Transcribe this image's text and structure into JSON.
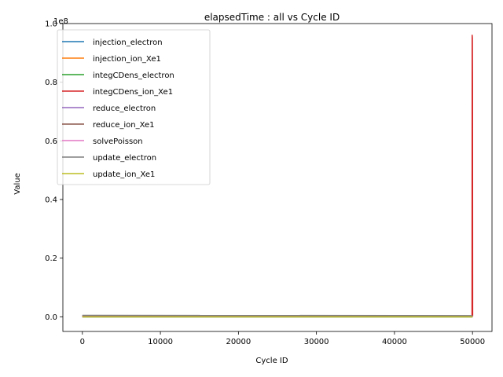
{
  "chart_data": {
    "type": "line",
    "title": "elapsedTime : all vs Cycle ID",
    "xlabel": "Cycle ID",
    "ylabel": "Value",
    "y_offset_text": "1e8",
    "xlim": [
      -2500,
      52500
    ],
    "ylim": [
      -0.05,
      1.0
    ],
    "y_scale_factor": 100000000.0,
    "xticks": [
      0,
      10000,
      20000,
      30000,
      40000,
      50000
    ],
    "xtick_labels": [
      "0",
      "10000",
      "20000",
      "30000",
      "40000",
      "50000"
    ],
    "yticks": [
      0.0,
      0.2,
      0.4,
      0.6,
      0.8,
      1.0
    ],
    "ytick_labels": [
      "0.0",
      "0.2",
      "0.4",
      "0.6",
      "0.8",
      "1.0"
    ],
    "grid": false,
    "legend_position": "top-left",
    "series": [
      {
        "name": "injection_electron",
        "color": "#1f77b4",
        "x": [
          0,
          50000
        ],
        "y": [
          0.0,
          0.0
        ]
      },
      {
        "name": "injection_ion_Xe1",
        "color": "#ff7f0e",
        "x": [
          0,
          50000
        ],
        "y": [
          0.0,
          0.0
        ]
      },
      {
        "name": "integCDens_electron",
        "color": "#2ca02c",
        "x": [
          0,
          50000
        ],
        "y": [
          0.0,
          0.0
        ]
      },
      {
        "name": "integCDens_ion_Xe1",
        "color": "#d62728",
        "x": [
          0,
          49900,
          49940,
          49960,
          49980,
          50000,
          50020
        ],
        "y": [
          0.002,
          0.002,
          0.002,
          0.96,
          0.95,
          0.8,
          0.002
        ]
      },
      {
        "name": "reduce_electron",
        "color": "#9467bd",
        "x": [
          0,
          50000
        ],
        "y": [
          0.004,
          0.003
        ]
      },
      {
        "name": "reduce_ion_Xe1",
        "color": "#8c564b",
        "x": [
          0,
          50000
        ],
        "y": [
          0.004,
          0.003
        ]
      },
      {
        "name": "solvePoisson",
        "color": "#e377c2",
        "x": [
          0,
          50000
        ],
        "y": [
          0.001,
          0.001
        ]
      },
      {
        "name": "update_electron",
        "color": "#7f7f7f",
        "x": [
          0,
          50000
        ],
        "y": [
          0.005,
          0.004
        ]
      },
      {
        "name": "update_ion_Xe1",
        "color": "#bcbd22",
        "x": [
          0,
          50000
        ],
        "y": [
          0.0,
          0.0
        ]
      }
    ]
  }
}
